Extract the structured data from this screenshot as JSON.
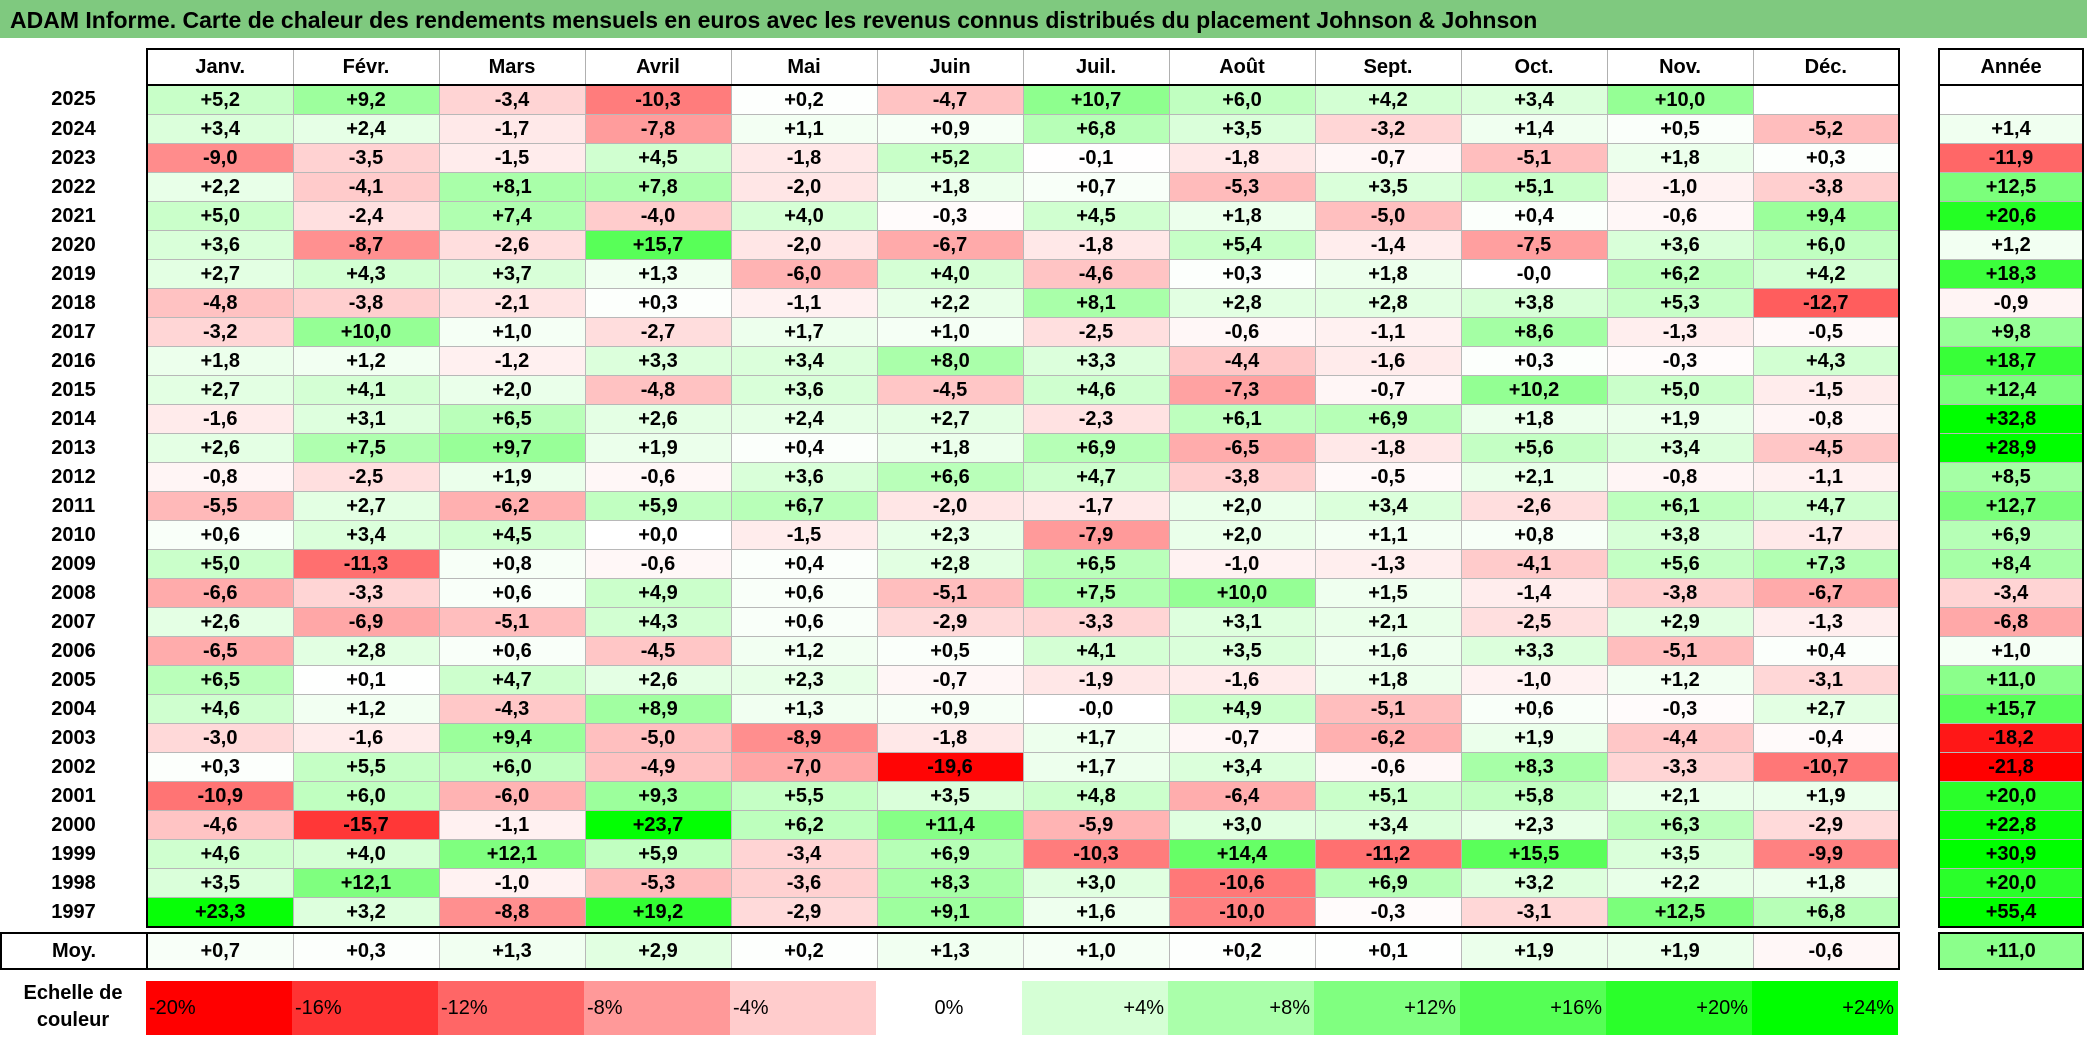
{
  "title": "ADAM Informe. Carte de chaleur des rendements mensuels en euros avec les revenus connus distribués du placement Johnson & Johnson",
  "chart_data": {
    "type": "heatmap",
    "months": [
      "Janv.",
      "Févr.",
      "Mars",
      "Avril",
      "Mai",
      "Juin",
      "Juil.",
      "Août",
      "Sept.",
      "Oct.",
      "Nov.",
      "Déc."
    ],
    "annual_header": "Année",
    "rows": [
      {
        "year": "2025",
        "values": [
          "+5,2",
          "+9,2",
          "-3,4",
          "-10,3",
          "+0,2",
          "-4,7",
          "+10,7",
          "+6,0",
          "+4,2",
          "+3,4",
          "+10,0",
          ""
        ],
        "annual": ""
      },
      {
        "year": "2024",
        "values": [
          "+3,4",
          "+2,4",
          "-1,7",
          "-7,8",
          "+1,1",
          "+0,9",
          "+6,8",
          "+3,5",
          "-3,2",
          "+1,4",
          "+0,5",
          "-5,2"
        ],
        "annual": "+1,4"
      },
      {
        "year": "2023",
        "values": [
          "-9,0",
          "-3,5",
          "-1,5",
          "+4,5",
          "-1,8",
          "+5,2",
          "-0,1",
          "-1,8",
          "-0,7",
          "-5,1",
          "+1,8",
          "+0,3"
        ],
        "annual": "-11,9"
      },
      {
        "year": "2022",
        "values": [
          "+2,2",
          "-4,1",
          "+8,1",
          "+7,8",
          "-2,0",
          "+1,8",
          "+0,7",
          "-5,3",
          "+3,5",
          "+5,1",
          "-1,0",
          "-3,8"
        ],
        "annual": "+12,5"
      },
      {
        "year": "2021",
        "values": [
          "+5,0",
          "-2,4",
          "+7,4",
          "-4,0",
          "+4,0",
          "-0,3",
          "+4,5",
          "+1,8",
          "-5,0",
          "+0,4",
          "-0,6",
          "+9,4"
        ],
        "annual": "+20,6"
      },
      {
        "year": "2020",
        "values": [
          "+3,6",
          "-8,7",
          "-2,6",
          "+15,7",
          "-2,0",
          "-6,7",
          "-1,8",
          "+5,4",
          "-1,4",
          "-7,5",
          "+3,6",
          "+6,0"
        ],
        "annual": "+1,2"
      },
      {
        "year": "2019",
        "values": [
          "+2,7",
          "+4,3",
          "+3,7",
          "+1,3",
          "-6,0",
          "+4,0",
          "-4,6",
          "+0,3",
          "+1,8",
          "-0,0",
          "+6,2",
          "+4,2"
        ],
        "annual": "+18,3"
      },
      {
        "year": "2018",
        "values": [
          "-4,8",
          "-3,8",
          "-2,1",
          "+0,3",
          "-1,1",
          "+2,2",
          "+8,1",
          "+2,8",
          "+2,8",
          "+3,8",
          "+5,3",
          "-12,7"
        ],
        "annual": "-0,9"
      },
      {
        "year": "2017",
        "values": [
          "-3,2",
          "+10,0",
          "+1,0",
          "-2,7",
          "+1,7",
          "+1,0",
          "-2,5",
          "-0,6",
          "-1,1",
          "+8,6",
          "-1,3",
          "-0,5"
        ],
        "annual": "+9,8"
      },
      {
        "year": "2016",
        "values": [
          "+1,8",
          "+1,2",
          "-1,2",
          "+3,3",
          "+3,4",
          "+8,0",
          "+3,3",
          "-4,4",
          "-1,6",
          "+0,3",
          "-0,3",
          "+4,3"
        ],
        "annual": "+18,7"
      },
      {
        "year": "2015",
        "values": [
          "+2,7",
          "+4,1",
          "+2,0",
          "-4,8",
          "+3,6",
          "-4,5",
          "+4,6",
          "-7,3",
          "-0,7",
          "+10,2",
          "+5,0",
          "-1,5"
        ],
        "annual": "+12,4"
      },
      {
        "year": "2014",
        "values": [
          "-1,6",
          "+3,1",
          "+6,5",
          "+2,6",
          "+2,4",
          "+2,7",
          "-2,3",
          "+6,1",
          "+6,9",
          "+1,8",
          "+1,9",
          "-0,8"
        ],
        "annual": "+32,8"
      },
      {
        "year": "2013",
        "values": [
          "+2,6",
          "+7,5",
          "+9,7",
          "+1,9",
          "+0,4",
          "+1,8",
          "+6,9",
          "-6,5",
          "-1,8",
          "+5,6",
          "+3,4",
          "-4,5"
        ],
        "annual": "+28,9"
      },
      {
        "year": "2012",
        "values": [
          "-0,8",
          "-2,5",
          "+1,9",
          "-0,6",
          "+3,6",
          "+6,6",
          "+4,7",
          "-3,8",
          "-0,5",
          "+2,1",
          "-0,8",
          "-1,1"
        ],
        "annual": "+8,5"
      },
      {
        "year": "2011",
        "values": [
          "-5,5",
          "+2,7",
          "-6,2",
          "+5,9",
          "+6,7",
          "-2,0",
          "-1,7",
          "+2,0",
          "+3,4",
          "-2,6",
          "+6,1",
          "+4,7"
        ],
        "annual": "+12,7"
      },
      {
        "year": "2010",
        "values": [
          "+0,6",
          "+3,4",
          "+4,5",
          "+0,0",
          "-1,5",
          "+2,3",
          "-7,9",
          "+2,0",
          "+1,1",
          "+0,8",
          "+3,8",
          "-1,7"
        ],
        "annual": "+6,9"
      },
      {
        "year": "2009",
        "values": [
          "+5,0",
          "-11,3",
          "+0,8",
          "-0,6",
          "+0,4",
          "+2,8",
          "+6,5",
          "-1,0",
          "-1,3",
          "-4,1",
          "+5,6",
          "+7,3"
        ],
        "annual": "+8,4"
      },
      {
        "year": "2008",
        "values": [
          "-6,6",
          "-3,3",
          "+0,6",
          "+4,9",
          "+0,6",
          "-5,1",
          "+7,5",
          "+10,0",
          "+1,5",
          "-1,4",
          "-3,8",
          "-6,7"
        ],
        "annual": "-3,4"
      },
      {
        "year": "2007",
        "values": [
          "+2,6",
          "-6,9",
          "-5,1",
          "+4,3",
          "+0,6",
          "-2,9",
          "-3,3",
          "+3,1",
          "+2,1",
          "-2,5",
          "+2,9",
          "-1,3"
        ],
        "annual": "-6,8"
      },
      {
        "year": "2006",
        "values": [
          "-6,5",
          "+2,8",
          "+0,6",
          "-4,5",
          "+1,2",
          "+0,5",
          "+4,1",
          "+3,5",
          "+1,6",
          "+3,3",
          "-5,1",
          "+0,4"
        ],
        "annual": "+1,0"
      },
      {
        "year": "2005",
        "values": [
          "+6,5",
          "+0,1",
          "+4,7",
          "+2,6",
          "+2,3",
          "-0,7",
          "-1,9",
          "-1,6",
          "+1,8",
          "-1,0",
          "+1,2",
          "-3,1"
        ],
        "annual": "+11,0"
      },
      {
        "year": "2004",
        "values": [
          "+4,6",
          "+1,2",
          "-4,3",
          "+8,9",
          "+1,3",
          "+0,9",
          "-0,0",
          "+4,9",
          "-5,1",
          "+0,6",
          "-0,3",
          "+2,7"
        ],
        "annual": "+15,7"
      },
      {
        "year": "2003",
        "values": [
          "-3,0",
          "-1,6",
          "+9,4",
          "-5,0",
          "-8,9",
          "-1,8",
          "+1,7",
          "-0,7",
          "-6,2",
          "+1,9",
          "-4,4",
          "-0,4"
        ],
        "annual": "-18,2"
      },
      {
        "year": "2002",
        "values": [
          "+0,3",
          "+5,5",
          "+6,0",
          "-4,9",
          "-7,0",
          "-19,6",
          "+1,7",
          "+3,4",
          "-0,6",
          "+8,3",
          "-3,3",
          "-10,7"
        ],
        "annual": "-21,8"
      },
      {
        "year": "2001",
        "values": [
          "-10,9",
          "+6,0",
          "-6,0",
          "+9,3",
          "+5,5",
          "+3,5",
          "+4,8",
          "-6,4",
          "+5,1",
          "+5,8",
          "+2,1",
          "+1,9"
        ],
        "annual": "+20,0"
      },
      {
        "year": "2000",
        "values": [
          "-4,6",
          "-15,7",
          "-1,1",
          "+23,7",
          "+6,2",
          "+11,4",
          "-5,9",
          "+3,0",
          "+3,4",
          "+2,3",
          "+6,3",
          "-2,9"
        ],
        "annual": "+22,8"
      },
      {
        "year": "1999",
        "values": [
          "+4,6",
          "+4,0",
          "+12,1",
          "+5,9",
          "-3,4",
          "+6,9",
          "-10,3",
          "+14,4",
          "-11,2",
          "+15,5",
          "+3,5",
          "-9,9"
        ],
        "annual": "+30,9"
      },
      {
        "year": "1998",
        "values": [
          "+3,5",
          "+12,1",
          "-1,0",
          "-5,3",
          "-3,6",
          "+8,3",
          "+3,0",
          "-10,6",
          "+6,9",
          "+3,2",
          "+2,2",
          "+1,8"
        ],
        "annual": "+20,0"
      },
      {
        "year": "1997",
        "values": [
          "+23,3",
          "+3,2",
          "-8,8",
          "+19,2",
          "-2,9",
          "+9,1",
          "+1,6",
          "-10,0",
          "-0,3",
          "-3,1",
          "+12,5",
          "+6,8"
        ],
        "annual": "+55,4"
      }
    ],
    "average": {
      "label": "Moy.",
      "values": [
        "+0,7",
        "+0,3",
        "+1,3",
        "+2,9",
        "+0,2",
        "+1,3",
        "+1,0",
        "+0,2",
        "+0,1",
        "+1,9",
        "+1,9",
        "-0,6"
      ],
      "annual": "+11,0"
    },
    "color_scale": {
      "label": "Echelle de couleur",
      "stops": [
        {
          "label": "-20%",
          "value": -20,
          "color": "#ff0000"
        },
        {
          "label": "-16%",
          "value": -16,
          "color": "#ff3333"
        },
        {
          "label": "-12%",
          "value": -12,
          "color": "#ff6666"
        },
        {
          "label": "-8%",
          "value": -8,
          "color": "#ff9999"
        },
        {
          "label": "-4%",
          "value": -4,
          "color": "#ffcccc"
        },
        {
          "label": "0%",
          "value": 0,
          "color": "#ffffff"
        },
        {
          "label": "+4%",
          "value": 4,
          "color": "#d5ffd5"
        },
        {
          "label": "+8%",
          "value": 8,
          "color": "#aaffaa"
        },
        {
          "label": "+12%",
          "value": 12,
          "color": "#80ff80"
        },
        {
          "label": "+16%",
          "value": 16,
          "color": "#55ff55"
        },
        {
          "label": "+20%",
          "value": 20,
          "color": "#2aff2a"
        },
        {
          "label": "+24%",
          "value": 24,
          "color": "#00ff00"
        }
      ]
    }
  }
}
